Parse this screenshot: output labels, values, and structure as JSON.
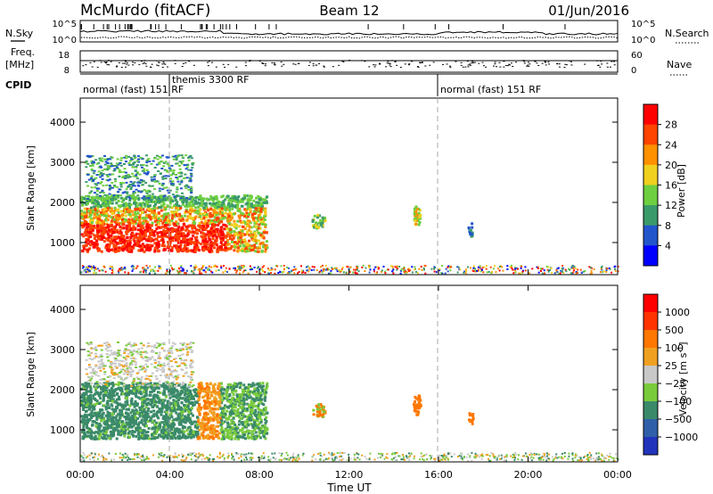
{
  "header": {
    "station": "McMurdo (fitACF)",
    "beam": "Beam 12",
    "date": "01/Jun/2016"
  },
  "noise_panel": {
    "left_label": "N.Sky",
    "left_ticks": [
      "10^5",
      "10^0"
    ],
    "right_label": "N.Search",
    "right_ticks": [
      "10^5",
      "10^0"
    ]
  },
  "freq_panel": {
    "left_label_top": "Freq.",
    "left_label_bottom": "[MHz]",
    "left_ticks": [
      "18",
      "8"
    ],
    "right_label": "Nave",
    "right_ticks": [
      "60",
      "0"
    ]
  },
  "cpid_panel": {
    "label": "CPID",
    "segments": [
      {
        "label": "normal (fast) 151 RF",
        "start_hour": 0
      },
      {
        "label": "themis 3300 RF",
        "start_hour": 4
      },
      {
        "label": "normal (fast) 151 RF",
        "start_hour": 16
      }
    ],
    "extra_label": "151 RF"
  },
  "chart_data": [
    {
      "type": "heatmap",
      "name": "power",
      "ylabel": "Slant Range [km]",
      "xlim": [
        0,
        24
      ],
      "ylim": [
        200,
        4600
      ],
      "yticks": [
        1000,
        2000,
        3000,
        4000
      ],
      "colorbar": {
        "label": "Power [dB]",
        "ticks": [
          "4",
          "8",
          "12",
          "16",
          "20",
          "24",
          "28"
        ],
        "colors": [
          "#0000ff",
          "#2255cc",
          "#3a9a6a",
          "#6ecf40",
          "#f0d020",
          "#ff9000",
          "#ff4400",
          "#ff0000"
        ],
        "range": [
          0,
          30
        ]
      }
    },
    {
      "type": "heatmap",
      "name": "velocity",
      "ylabel": "Slant Range [km]",
      "xlabel": "Time UT",
      "xlim": [
        0,
        24
      ],
      "ylim": [
        200,
        4600
      ],
      "yticks": [
        1000,
        2000,
        3000,
        4000
      ],
      "xticks": [
        "00:00",
        "04:00",
        "08:00",
        "12:00",
        "16:00",
        "20:00",
        "00:00"
      ],
      "colorbar": {
        "label": "Velocity [m s",
        "label_sup": "-1",
        "label_end": "]",
        "ticks": [
          "1000",
          "500",
          "100",
          "25",
          "−25",
          "−100",
          "−500",
          "−1000"
        ],
        "colors": [
          "#2233bb",
          "#2f5fa8",
          "#3a8a6a",
          "#7acb3c",
          "#c8c8c8",
          "#f0a020",
          "#ff7700",
          "#ff3300",
          "#ff0000"
        ]
      }
    }
  ]
}
